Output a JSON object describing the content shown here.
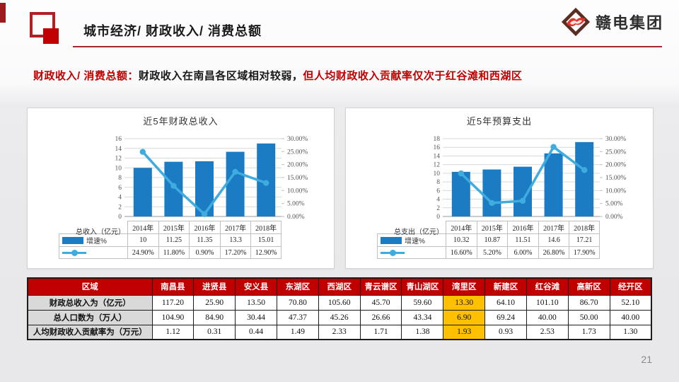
{
  "slide": {
    "title": "城市经济/ 财政收入/ 消费总额",
    "subtitle": {
      "lead": "财政收入/ 消费总额：",
      "middle": "财政收入在南昌各区域相对较弱，",
      "tail": "但人均财政收入贡献率仅次于红谷滩和西湖区"
    },
    "logo_text": "赣电集团",
    "page_number": "21"
  },
  "colors": {
    "accent_red": "#c00000",
    "table_header_red": "#c00000",
    "highlight_orange": "#ffc000",
    "row_label_gray": "#d9d9d9",
    "bar_blue": "#1b7cc4",
    "line_blue": "#3eacde"
  },
  "chart_data": [
    {
      "type": "bar+line",
      "name": "fiscal-revenue",
      "title": "近5年财政总收入",
      "categories": [
        "2014年",
        "2015年",
        "2016年",
        "2017年",
        "2018年"
      ],
      "series": [
        {
          "name": "总收入（亿元）",
          "type": "bar",
          "values": [
            10,
            11.25,
            11.35,
            13.3,
            15.01
          ],
          "display": [
            "10",
            "11.25",
            "11.35",
            "13.3",
            "15.01"
          ]
        },
        {
          "name": "增速%",
          "type": "line",
          "values": [
            24.9,
            11.8,
            0.9,
            17.2,
            12.9
          ],
          "display": [
            "24.90%",
            "11.80%",
            "0.90%",
            "17.20%",
            "12.90%"
          ]
        }
      ],
      "left_axis": {
        "max": 16,
        "ticks": [
          16,
          14,
          12,
          10,
          8,
          6,
          4,
          2,
          0
        ]
      },
      "right_axis": {
        "max": 30,
        "ticks": [
          "30.00%",
          "25.00%",
          "20.00%",
          "15.00%",
          "10.00%",
          "5.00%",
          "0.00%"
        ]
      },
      "grid": true,
      "legend_position": "left"
    },
    {
      "type": "bar+line",
      "name": "budget-expenditure",
      "title": "近5年预算支出",
      "categories": [
        "2014年",
        "2015年",
        "2016年",
        "2017年",
        "2018年"
      ],
      "series": [
        {
          "name": "总支出（亿元）",
          "type": "bar",
          "values": [
            10.32,
            10.87,
            11.51,
            14.6,
            17.21
          ],
          "display": [
            "10.32",
            "10.87",
            "11.51",
            "14.6",
            "17.21"
          ]
        },
        {
          "name": "增速%",
          "type": "line",
          "values": [
            16.6,
            5.2,
            6.0,
            26.8,
            17.9
          ],
          "display": [
            "16.60%",
            "5.20%",
            "6.00%",
            "26.80%",
            "17.90%"
          ]
        }
      ],
      "left_axis": {
        "max": 18,
        "ticks": [
          18,
          16,
          14,
          12,
          10,
          8,
          6,
          4,
          2,
          0
        ]
      },
      "right_axis": {
        "max": 30,
        "ticks": [
          "30.00%",
          "25.00%",
          "20.00%",
          "15.00%",
          "10.00%",
          "5.00%",
          "0.00%"
        ]
      },
      "grid": true,
      "legend_position": "left"
    }
  ],
  "region_table": {
    "header": [
      "区域",
      "南昌县",
      "进贤县",
      "安义县",
      "东湖区",
      "西湖区",
      "青云谱区",
      "青山湖区",
      "湾里区",
      "新建区",
      "红谷滩",
      "高新区",
      "经开区"
    ],
    "rows": [
      {
        "label": "财政总收入为（亿元）",
        "values": [
          "117.20",
          "25.90",
          "13.50",
          "70.80",
          "105.60",
          "45.70",
          "59.60",
          "13.30",
          "64.10",
          "101.10",
          "86.70",
          "52.10"
        ]
      },
      {
        "label": "总人口数为（万人）",
        "values": [
          "104.90",
          "84.90",
          "30.44",
          "47.37",
          "45.26",
          "26.66",
          "43.34",
          "6.90",
          "69.24",
          "40.00",
          "50.00",
          "40.00"
        ]
      },
      {
        "label": "人均财政收入贡献率为（万元）",
        "values": [
          "1.12",
          "0.31",
          "0.44",
          "1.49",
          "2.33",
          "1.71",
          "1.38",
          "1.93",
          "0.93",
          "2.53",
          "1.73",
          "1.30"
        ]
      }
    ],
    "highlight_column": "湾里区"
  }
}
